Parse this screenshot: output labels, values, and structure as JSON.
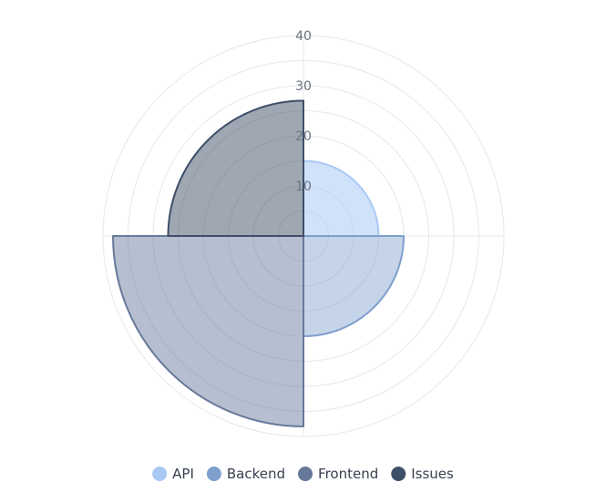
{
  "chart_data": {
    "type": "polar-area",
    "title": "",
    "r_ticks": [
      10,
      20,
      30,
      40
    ],
    "r_max": 40,
    "series": [
      {
        "name": "API",
        "value": 15,
        "quadrant": "top-right",
        "color": "#a9c9f5",
        "fill_opacity": 0.55
      },
      {
        "name": "Backend",
        "value": 20,
        "quadrant": "bottom-right",
        "color": "#7f9fcd",
        "fill_opacity": 0.45
      },
      {
        "name": "Frontend",
        "value": 38,
        "quadrant": "bottom-left",
        "color": "#66799b",
        "fill_opacity": 0.48
      },
      {
        "name": "Issues",
        "value": 27,
        "quadrant": "top-left",
        "color": "#3f4f68",
        "fill_opacity": 0.5
      }
    ],
    "legend": {
      "position": "bottom",
      "items": [
        "API",
        "Backend",
        "Frontend",
        "Issues"
      ]
    },
    "grid": true
  }
}
